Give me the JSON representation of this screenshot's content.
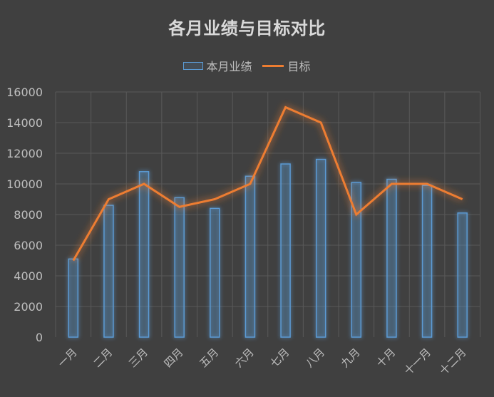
{
  "title": "各月业绩与目标对比",
  "legend": {
    "bar_label": "本月业绩",
    "line_label": "目标"
  },
  "colors": {
    "background": "#404040",
    "bar_outline": "#5b9bd5",
    "line": "#ed7d31",
    "grid": "#595959",
    "text": "#bfbfbf"
  },
  "chart_data": {
    "type": "bar",
    "title": "各月业绩与目标对比",
    "xlabel": "",
    "ylabel": "",
    "ylim": [
      0,
      16000
    ],
    "yticks": [
      0,
      2000,
      4000,
      6000,
      8000,
      10000,
      12000,
      14000,
      16000
    ],
    "grid": true,
    "legend_position": "top",
    "categories": [
      "一月",
      "二月",
      "三月",
      "四月",
      "五月",
      "六月",
      "七月",
      "八月",
      "九月",
      "十月",
      "十一月",
      "十二月"
    ],
    "series": [
      {
        "name": "本月业绩",
        "type": "bar",
        "values": [
          5100,
          8600,
          10800,
          9100,
          8400,
          10500,
          11300,
          11600,
          10100,
          10300,
          9900,
          8100
        ]
      },
      {
        "name": "目标",
        "type": "line",
        "values": [
          5000,
          9000,
          10000,
          8500,
          9000,
          10000,
          15000,
          14000,
          8000,
          10000,
          10000,
          9000
        ]
      }
    ]
  }
}
